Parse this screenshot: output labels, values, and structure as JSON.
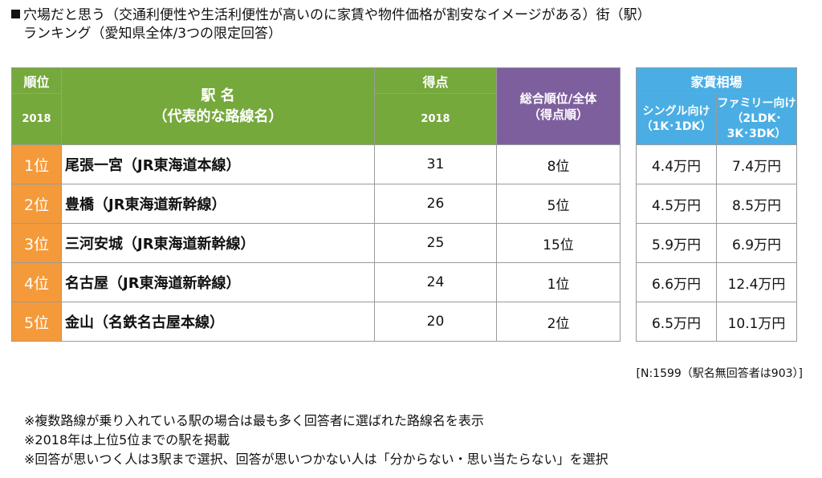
{
  "title": {
    "line1": "穴場だと思う（交通利便性や生活利便性が高いのに家賃や物件価格が割安なイメージがある）街（駅）",
    "line2": "ランキング（愛知県全体/3つの限定回答）"
  },
  "table": {
    "headers": {
      "rank": "順位",
      "rank_year": "2018",
      "station_line1": "駅 名",
      "station_line2": "（代表的な路線名）",
      "score": "得点",
      "score_year": "2018",
      "overall_line1": "総合順位/全体",
      "overall_line2": "（得点順）",
      "rent": "家賃相場",
      "single_line1": "シングル向け",
      "single_line2": "（1K･1DK）",
      "family_line1": "ファミリー向け",
      "family_line2": "（2LDK･",
      "family_line3": "3K･3DK）"
    },
    "rows": [
      {
        "rank": "1位",
        "station": "尾張一宮（JR東海道本線）",
        "score": "31",
        "overall": "8位",
        "single": "4.4万円",
        "family": "7.4万円"
      },
      {
        "rank": "2位",
        "station": "豊橋（JR東海道新幹線）",
        "score": "26",
        "overall": "5位",
        "single": "4.5万円",
        "family": "8.5万円"
      },
      {
        "rank": "3位",
        "station": "三河安城（JR東海道新幹線）",
        "score": "25",
        "overall": "15位",
        "single": "5.9万円",
        "family": "6.9万円"
      },
      {
        "rank": "4位",
        "station": "名古屋（JR東海道新幹線）",
        "score": "24",
        "overall": "1位",
        "single": "6.6万円",
        "family": "12.4万円"
      },
      {
        "rank": "5位",
        "station": "金山（名鉄名古屋本線）",
        "score": "20",
        "overall": "2位",
        "single": "6.5万円",
        "family": "10.1万円"
      }
    ]
  },
  "sample_note": "[N:1599（駅名無回答者は903）]",
  "notes": [
    "※複数路線が乗り入れている駅の場合は最も多く回答者に選ばれた路線名を表示",
    "※2018年は上位5位までの駅を掲載",
    "※回答が思いつく人は3駅まで選択、回答が思いつかない人は「分からない・思い当たらない」を選択"
  ],
  "colors": {
    "header_green": "#76a93c",
    "header_purple": "#7e5f9e",
    "header_blue": "#4aaee4",
    "rank_orange": "#f49a3a"
  }
}
